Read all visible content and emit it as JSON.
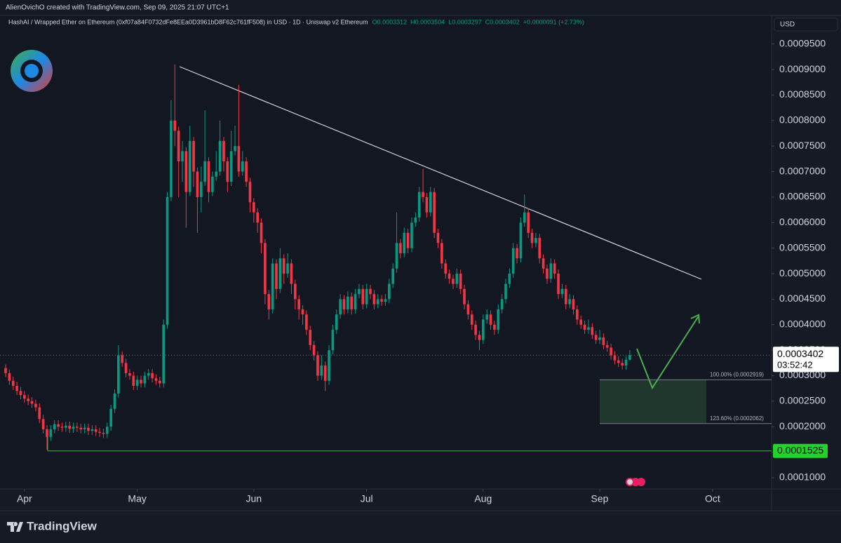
{
  "chart_data": {
    "type": "candlestick",
    "header": "AlienOvichO created with TradingView.com, Sep 09, 2025 21:07 UTC+1",
    "title": "HashAI / Wrapped Ether on Ethereum (0xf07a84F0732dFe8EEa0D3961bD8F62c761fF508) in USD · 1D · Uniswap v2 Ethereum",
    "legend_values": [
      "O0.0003312",
      "H0.0003504",
      "L0.0003297",
      "C0.0003402",
      "+0.0000091 (+2.73%)"
    ],
    "currency": "USD",
    "brand": "TradingView",
    "up_color": "#089981",
    "down_color": "#f23645",
    "ylim": [
      7.8e-05,
      0.001006
    ],
    "yticks": [
      {
        "value": 0.0001,
        "label": "0.0001000"
      },
      {
        "value": 0.00015,
        "label": "0.0001500"
      },
      {
        "value": 0.0002,
        "label": "0.0002000"
      },
      {
        "value": 0.00025,
        "label": "0.0002500"
      },
      {
        "value": 0.0003,
        "label": "0.0003000"
      },
      {
        "value": 0.00035,
        "label": "0.0003500"
      },
      {
        "value": 0.0004,
        "label": "0.0004000"
      },
      {
        "value": 0.00045,
        "label": "0.0004500"
      },
      {
        "value": 0.0005,
        "label": "0.0005000"
      },
      {
        "value": 0.00055,
        "label": "0.0005500"
      },
      {
        "value": 0.0006,
        "label": "0.0006000"
      },
      {
        "value": 0.00065,
        "label": "0.0006500"
      },
      {
        "value": 0.0007,
        "label": "0.0007000"
      },
      {
        "value": 0.00075,
        "label": "0.0007500"
      },
      {
        "value": 0.0008,
        "label": "0.0008000"
      },
      {
        "value": 0.00085,
        "label": "0.0008500"
      },
      {
        "value": 0.0009,
        "label": "0.0009000"
      },
      {
        "value": 0.00095,
        "label": "0.0009500"
      }
    ],
    "xlim": [
      -1.5,
      203.7
    ],
    "xticks": [
      {
        "value": 5,
        "label": "Apr"
      },
      {
        "value": 35,
        "label": "May"
      },
      {
        "value": 66,
        "label": "Jun"
      },
      {
        "value": 96,
        "label": "Jul"
      },
      {
        "value": 127,
        "label": "Aug"
      },
      {
        "value": 158,
        "label": "Sep"
      },
      {
        "value": 188,
        "label": "Oct"
      }
    ],
    "last_price": 0.0003402,
    "countdown": "03:52:42",
    "support": 0.0001525,
    "fib_levels": [
      {
        "label": "100.00% (0.0002919)",
        "value": 0.0002919
      },
      {
        "label": "123.60% (0.0002062)",
        "value": 0.0002062
      }
    ],
    "candles": [
      [
        0.000315,
        0.000322,
        0.000297,
        0.000305
      ],
      [
        0.000305,
        0.000312,
        0.000282,
        0.00029
      ],
      [
        0.00029,
        0.000298,
        0.000272,
        0.00028
      ],
      [
        0.00028,
        0.000288,
        0.000262,
        0.00027
      ],
      [
        0.00027,
        0.000278,
        0.000254,
        0.000262
      ],
      [
        0.000262,
        0.00027,
        0.000247,
        0.000255
      ],
      [
        0.000255,
        0.000263,
        0.000242,
        0.00025
      ],
      [
        0.00025,
        0.000258,
        0.000237,
        0.000245
      ],
      [
        0.000245,
        0.000253,
        0.00023,
        0.000238
      ],
      [
        0.000238,
        0.000246,
        0.000207,
        0.000215
      ],
      [
        0.000215,
        0.000223,
        0.000187,
        0.000195
      ],
      [
        0.000195,
        0.000203,
        0.000155,
        0.00018
      ],
      [
        0.00018,
        0.000203,
        0.000172,
        0.000195
      ],
      [
        0.000195,
        0.000213,
        0.000187,
        0.000205
      ],
      [
        0.000205,
        0.000213,
        0.000192,
        0.0002
      ],
      [
        0.0002,
        0.000208,
        0.00019,
        0.000198
      ],
      [
        0.000198,
        0.00021,
        0.00019,
        0.000202
      ],
      [
        0.000202,
        0.00021,
        0.000188,
        0.000196
      ],
      [
        0.000196,
        0.000208,
        0.000188,
        0.0002
      ],
      [
        0.0002,
        0.000208,
        0.00019,
        0.000198
      ],
      [
        0.000198,
        0.000206,
        0.000187,
        0.000195
      ],
      [
        0.000195,
        0.000206,
        0.000187,
        0.000198
      ],
      [
        0.000198,
        0.000206,
        0.000184,
        0.000192
      ],
      [
        0.000192,
        0.000203,
        0.000184,
        0.000195
      ],
      [
        0.000195,
        0.000203,
        0.000182,
        0.00019
      ],
      [
        0.00019,
        0.000198,
        0.00018,
        0.000188
      ],
      [
        0.000188,
        0.000196,
        0.000178,
        0.000186
      ],
      [
        0.000186,
        0.000208,
        0.000178,
        0.0002
      ],
      [
        0.0002,
        0.000243,
        0.000192,
        0.000235
      ],
      [
        0.000235,
        0.000273,
        0.000227,
        0.000265
      ],
      [
        0.000265,
        0.00036,
        0.000257,
        0.00034
      ],
      [
        0.00034,
        0.000348,
        0.000317,
        0.000325
      ],
      [
        0.000325,
        0.000333,
        0.000297,
        0.000305
      ],
      [
        0.000305,
        0.000313,
        0.000292,
        0.0003
      ],
      [
        0.0003,
        0.000308,
        0.000272,
        0.00028
      ],
      [
        0.00028,
        0.0003,
        0.000272,
        0.000292
      ],
      [
        0.000292,
        0.0003,
        0.000277,
        0.000285
      ],
      [
        0.000285,
        0.000308,
        0.000277,
        0.0003
      ],
      [
        0.0003,
        0.000313,
        0.000292,
        0.000305
      ],
      [
        0.000305,
        0.000313,
        0.000287,
        0.000295
      ],
      [
        0.000295,
        0.000303,
        0.000282,
        0.00029
      ],
      [
        0.00029,
        0.000298,
        0.000277,
        0.000285
      ],
      [
        0.000285,
        0.00041,
        0.000277,
        0.0004
      ],
      [
        0.0004,
        0.00066,
        0.000392,
        0.00065
      ],
      [
        0.00065,
        0.00084,
        0.000642,
        0.0008
      ],
      [
        0.0008,
        0.00091,
        0.00075,
        0.00078
      ],
      [
        0.00078,
        0.000788,
        0.00065,
        0.00072
      ],
      [
        0.00072,
        0.00076,
        0.00068,
        0.00074
      ],
      [
        0.00074,
        0.000748,
        0.00059,
        0.00066
      ],
      [
        0.00066,
        0.00079,
        0.000652,
        0.00076
      ],
      [
        0.00076,
        0.000768,
        0.00067,
        0.0007
      ],
      [
        0.0007,
        0.000708,
        0.00058,
        0.00065
      ],
      [
        0.00065,
        0.00071,
        0.00062,
        0.00068
      ],
      [
        0.00068,
        0.00082,
        0.000672,
        0.00072
      ],
      [
        0.00072,
        0.000728,
        0.00064,
        0.00066
      ],
      [
        0.00066,
        0.0007,
        0.000652,
        0.00069
      ],
      [
        0.00069,
        0.00074,
        0.000682,
        0.0007
      ],
      [
        0.0007,
        0.0008,
        0.000692,
        0.00076
      ],
      [
        0.00076,
        0.000768,
        0.0007,
        0.00072
      ],
      [
        0.00072,
        0.000728,
        0.00066,
        0.00068
      ],
      [
        0.00068,
        0.00078,
        0.000672,
        0.00074
      ],
      [
        0.00074,
        0.00079,
        0.000732,
        0.00075
      ],
      [
        0.00075,
        0.00087,
        0.00069,
        0.0007
      ],
      [
        0.0007,
        0.00074,
        0.000692,
        0.00072
      ],
      [
        0.00072,
        0.000728,
        0.00067,
        0.00068
      ],
      [
        0.00068,
        0.000688,
        0.00062,
        0.00064
      ],
      [
        0.00064,
        0.000648,
        0.0006,
        0.00062
      ],
      [
        0.00062,
        0.000628,
        0.00058,
        0.0006
      ],
      [
        0.0006,
        0.000608,
        0.00054,
        0.00056
      ],
      [
        0.00056,
        0.000568,
        0.00044,
        0.00046
      ],
      [
        0.00046,
        0.000468,
        0.00041,
        0.00043
      ],
      [
        0.00043,
        0.00053,
        0.000422,
        0.00052
      ],
      [
        0.00052,
        0.000528,
        0.00045,
        0.00047
      ],
      [
        0.00047,
        0.00055,
        0.000462,
        0.00053
      ],
      [
        0.00053,
        0.000538,
        0.00048,
        0.0005
      ],
      [
        0.0005,
        0.00054,
        0.000492,
        0.00052
      ],
      [
        0.00052,
        0.000528,
        0.00046,
        0.00048
      ],
      [
        0.00048,
        0.000488,
        0.00043,
        0.00045
      ],
      [
        0.00045,
        0.000458,
        0.00041,
        0.00043
      ],
      [
        0.00043,
        0.000438,
        0.0004,
        0.00042
      ],
      [
        0.00042,
        0.000428,
        0.00038,
        0.00039
      ],
      [
        0.00039,
        0.000398,
        0.00035,
        0.00036
      ],
      [
        0.00036,
        0.000368,
        0.00033,
        0.00034
      ],
      [
        0.00034,
        0.000348,
        0.00029,
        0.0003
      ],
      [
        0.0003,
        0.00034,
        0.000292,
        0.00032
      ],
      [
        0.00032,
        0.000328,
        0.00027,
        0.00029
      ],
      [
        0.00029,
        0.00036,
        0.000282,
        0.00035
      ],
      [
        0.00035,
        0.0004,
        0.000342,
        0.00039
      ],
      [
        0.00039,
        0.00043,
        0.000382,
        0.00042
      ],
      [
        0.00042,
        0.00046,
        0.000412,
        0.00045
      ],
      [
        0.00045,
        0.000458,
        0.00042,
        0.00043
      ],
      [
        0.00043,
        0.000465,
        0.000422,
        0.000455
      ],
      [
        0.000455,
        0.000463,
        0.00042,
        0.00043
      ],
      [
        0.00043,
        0.00047,
        0.000422,
        0.00046
      ],
      [
        0.00046,
        0.00048,
        0.000452,
        0.00047
      ],
      [
        0.00047,
        0.000478,
        0.00043,
        0.00044
      ],
      [
        0.00044,
        0.00048,
        0.000432,
        0.00047
      ],
      [
        0.00047,
        0.000478,
        0.00045,
        0.00046
      ],
      [
        0.00046,
        0.000468,
        0.00043,
        0.00044
      ],
      [
        0.00044,
        0.00046,
        0.000432,
        0.00045
      ],
      [
        0.00045,
        0.000458,
        0.000437,
        0.000445
      ],
      [
        0.000445,
        0.00046,
        0.000437,
        0.00045
      ],
      [
        0.00045,
        0.00049,
        0.000442,
        0.00048
      ],
      [
        0.00048,
        0.00052,
        0.000472,
        0.00051
      ],
      [
        0.00051,
        0.00062,
        0.000502,
        0.00056
      ],
      [
        0.00056,
        0.000568,
        0.00053,
        0.00054
      ],
      [
        0.00054,
        0.00059,
        0.000532,
        0.00058
      ],
      [
        0.00058,
        0.000588,
        0.00054,
        0.00055
      ],
      [
        0.00055,
        0.00061,
        0.000542,
        0.0006
      ],
      [
        0.0006,
        0.00062,
        0.000592,
        0.00061
      ],
      [
        0.00061,
        0.00067,
        0.000602,
        0.00066
      ],
      [
        0.00066,
        0.000705,
        0.00064,
        0.00065
      ],
      [
        0.00065,
        0.000658,
        0.00061,
        0.00062
      ],
      [
        0.00062,
        0.00067,
        0.000612,
        0.00066
      ],
      [
        0.00066,
        0.000668,
        0.00057,
        0.00058
      ],
      [
        0.00058,
        0.000588,
        0.00055,
        0.00056
      ],
      [
        0.00056,
        0.000568,
        0.00051,
        0.00052
      ],
      [
        0.00052,
        0.000528,
        0.00049,
        0.0005
      ],
      [
        0.0005,
        0.000508,
        0.00048,
        0.00049
      ],
      [
        0.00049,
        0.000498,
        0.00047,
        0.00048
      ],
      [
        0.00048,
        0.00051,
        0.000472,
        0.0005
      ],
      [
        0.0005,
        0.000508,
        0.00046,
        0.00047
      ],
      [
        0.00047,
        0.000478,
        0.00043,
        0.00044
      ],
      [
        0.00044,
        0.000448,
        0.00041,
        0.00042
      ],
      [
        0.00042,
        0.000428,
        0.00039,
        0.0004
      ],
      [
        0.0004,
        0.000408,
        0.00037,
        0.00038
      ],
      [
        0.00038,
        0.000388,
        0.00035,
        0.00037
      ],
      [
        0.00037,
        0.00042,
        0.000362,
        0.00041
      ],
      [
        0.00041,
        0.00043,
        0.000402,
        0.00042
      ],
      [
        0.00042,
        0.000428,
        0.00039,
        0.0004
      ],
      [
        0.0004,
        0.000408,
        0.00038,
        0.00039
      ],
      [
        0.00039,
        0.00044,
        0.000382,
        0.00043
      ],
      [
        0.00043,
        0.00046,
        0.000422,
        0.00045
      ],
      [
        0.00045,
        0.00049,
        0.000442,
        0.00048
      ],
      [
        0.00048,
        0.00051,
        0.000472,
        0.0005
      ],
      [
        0.0005,
        0.00056,
        0.000492,
        0.00055
      ],
      [
        0.00055,
        0.000558,
        0.00052,
        0.00053
      ],
      [
        0.00053,
        0.00061,
        0.000522,
        0.0006
      ],
      [
        0.0006,
        0.000655,
        0.000592,
        0.00062
      ],
      [
        0.00062,
        0.000628,
        0.00057,
        0.00058
      ],
      [
        0.00058,
        0.000588,
        0.00055,
        0.00056
      ],
      [
        0.00056,
        0.00058,
        0.000552,
        0.00057
      ],
      [
        0.00057,
        0.000578,
        0.00052,
        0.00053
      ],
      [
        0.00053,
        0.000538,
        0.0005,
        0.00051
      ],
      [
        0.00051,
        0.000518,
        0.00048,
        0.00049
      ],
      [
        0.00049,
        0.00053,
        0.000482,
        0.00052
      ],
      [
        0.00052,
        0.000528,
        0.00049,
        0.0005
      ],
      [
        0.0005,
        0.000508,
        0.00045,
        0.00046
      ],
      [
        0.00046,
        0.00048,
        0.000452,
        0.00047
      ],
      [
        0.00047,
        0.000478,
        0.00043,
        0.00044
      ],
      [
        0.00044,
        0.00046,
        0.000432,
        0.00045
      ],
      [
        0.00045,
        0.000458,
        0.00042,
        0.00043
      ],
      [
        0.00043,
        0.000438,
        0.0004,
        0.00041
      ],
      [
        0.00041,
        0.000418,
        0.000392,
        0.0004
      ],
      [
        0.0004,
        0.000408,
        0.000382,
        0.00039
      ],
      [
        0.00039,
        0.00041,
        0.000382,
        0.000395
      ],
      [
        0.000395,
        0.000403,
        0.000372,
        0.00038
      ],
      [
        0.00038,
        0.000388,
        0.000362,
        0.00037
      ],
      [
        0.00037,
        0.00039,
        0.000362,
        0.000375
      ],
      [
        0.000375,
        0.000383,
        0.000352,
        0.00036
      ],
      [
        0.00036,
        0.000368,
        0.000347,
        0.000355
      ],
      [
        0.000355,
        0.000363,
        0.000332,
        0.00034
      ],
      [
        0.00034,
        0.000348,
        0.000322,
        0.00033
      ],
      [
        0.00033,
        0.000338,
        0.000317,
        0.000325
      ],
      [
        0.000325,
        0.000333,
        0.000312,
        0.00032
      ],
      [
        0.00032,
        0.000338,
        0.000312,
        0.0003312
      ],
      [
        0.0003312,
        0.0003504,
        0.0003297,
        0.0003402
      ]
    ]
  }
}
